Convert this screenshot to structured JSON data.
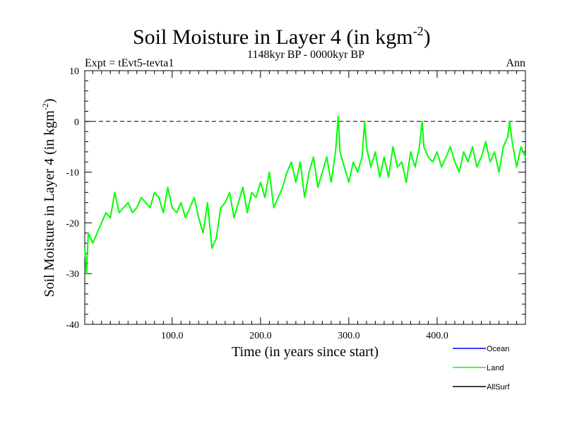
{
  "chart_data": {
    "type": "line",
    "title_main": "Soil Moisture in Layer 4 (in kgm",
    "title_sup": "-2",
    "title_close": ")",
    "subtitle": "1148kyr BP - 0000kyr BP",
    "left_label": "Expt = tEvt5-tevta1",
    "right_label": "Ann",
    "xlabel": "Time (in years since start)",
    "ylabel_main": "Soil Moisture in Layer 4 (in kgm",
    "ylabel_sup": "-2",
    "ylabel_close": ")",
    "xlim": [
      1,
      500
    ],
    "ylim": [
      -40,
      10
    ],
    "x_ticks_major": [
      100,
      200,
      300,
      400
    ],
    "x_tick_labels": [
      "100.0",
      "200.0",
      "300.0",
      "400.0"
    ],
    "y_ticks_major": [
      -40,
      -30,
      -20,
      -10,
      0,
      10
    ],
    "y_tick_labels": [
      "-40",
      "-30",
      "-20",
      "-10",
      "0",
      "10"
    ],
    "reference_line": 0,
    "legend": [
      {
        "name": "Ocean",
        "color": "#0000ff"
      },
      {
        "name": "Land",
        "color": "#00ff00"
      },
      {
        "name": "AllSurf",
        "color": "#000000"
      }
    ],
    "series": [
      {
        "name": "Land",
        "color": "#00ff00",
        "x": [
          1,
          3,
          5,
          10,
          15,
          20,
          25,
          30,
          35,
          40,
          45,
          50,
          55,
          60,
          65,
          70,
          75,
          80,
          85,
          90,
          95,
          100,
          105,
          110,
          115,
          120,
          125,
          130,
          135,
          140,
          145,
          150,
          155,
          160,
          165,
          170,
          175,
          180,
          185,
          190,
          195,
          200,
          205,
          210,
          215,
          220,
          225,
          230,
          235,
          240,
          245,
          250,
          255,
          260,
          265,
          270,
          275,
          280,
          285,
          288,
          290,
          295,
          300,
          305,
          310,
          315,
          318,
          320,
          325,
          330,
          335,
          340,
          345,
          350,
          355,
          360,
          365,
          370,
          375,
          380,
          383,
          385,
          390,
          395,
          400,
          405,
          410,
          415,
          420,
          425,
          430,
          435,
          440,
          445,
          450,
          455,
          460,
          465,
          470,
          475,
          480,
          482,
          485,
          490,
          495,
          500
        ],
        "values": [
          -25,
          -30,
          -22,
          -24,
          -22,
          -20,
          -18,
          -19,
          -14,
          -18,
          -17,
          -16,
          -18,
          -17,
          -15,
          -16,
          -17,
          -14,
          -15,
          -18,
          -13,
          -17,
          -18,
          -16,
          -19,
          -17,
          -15,
          -19,
          -22,
          -16,
          -25,
          -23,
          -17,
          -16,
          -14,
          -19,
          -16,
          -13,
          -18,
          -14,
          -15,
          -12,
          -15,
          -10,
          -17,
          -15,
          -13,
          -10,
          -8,
          -12,
          -8,
          -15,
          -10,
          -7,
          -13,
          -10,
          -7,
          -12,
          -6,
          1,
          -6,
          -9,
          -12,
          -8,
          -10,
          -7,
          0,
          -5,
          -9,
          -6,
          -11,
          -7,
          -11,
          -5,
          -9,
          -8,
          -12,
          -6,
          -9,
          -5,
          0,
          -5,
          -7,
          -8,
          -6,
          -9,
          -7,
          -5,
          -8,
          -10,
          -6,
          -8,
          -5,
          -9,
          -7,
          -4,
          -8,
          -6,
          -10,
          -5,
          -3,
          0,
          -4,
          -9,
          -5,
          -7
        ]
      }
    ]
  }
}
